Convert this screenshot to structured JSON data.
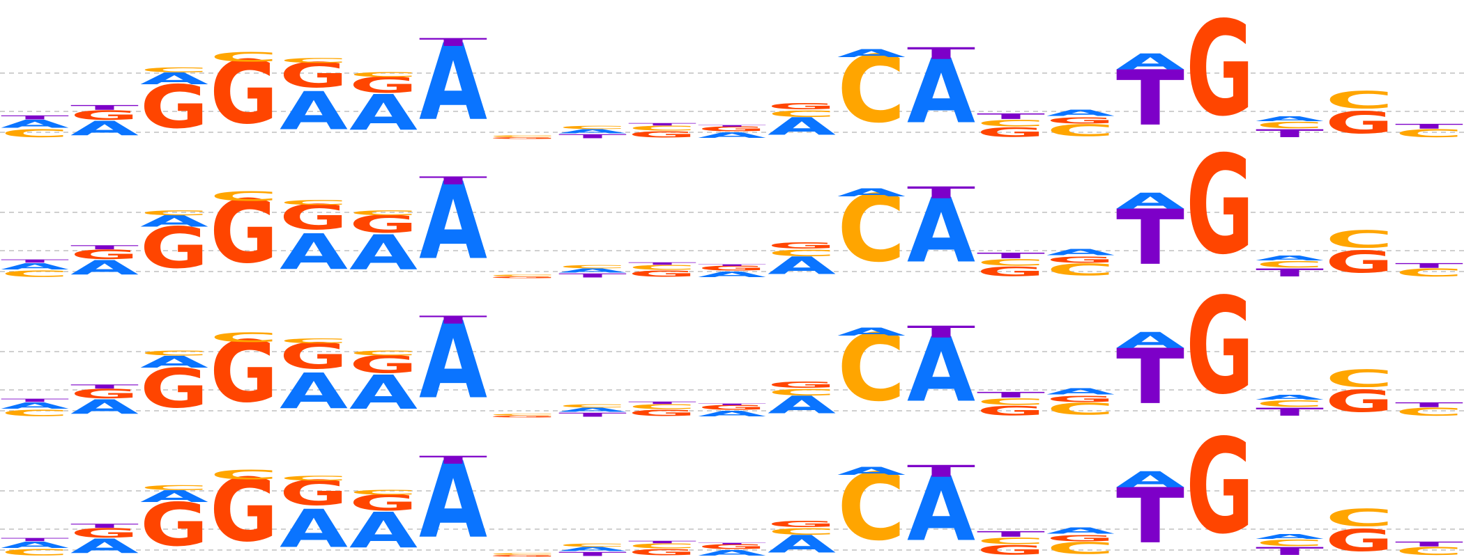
{
  "figure": {
    "type": "sequence-logo",
    "panel_count": 4,
    "colors": {
      "A": "#0a74ff",
      "C": "#ffa500",
      "G": "#ff4500",
      "T": "#7d00c8"
    },
    "grid": true
  },
  "logos": [
    {
      "columns": [
        [
          [
            "C",
            0.1
          ],
          [
            "A",
            0.1
          ],
          [
            "T",
            0.05
          ]
        ],
        [
          [
            "A",
            0.18
          ],
          [
            "G",
            0.12
          ],
          [
            "T",
            0.06
          ]
        ],
        [
          [
            "G",
            0.55
          ],
          [
            "A",
            0.15
          ],
          [
            "C",
            0.06
          ]
        ],
        [
          [
            "G",
            0.8
          ],
          [
            "C",
            0.12
          ]
        ],
        [
          [
            "A",
            0.48
          ],
          [
            "G",
            0.32
          ],
          [
            "C",
            0.06
          ]
        ],
        [
          [
            "A",
            0.45
          ],
          [
            "G",
            0.2
          ],
          [
            "C",
            0.06
          ]
        ],
        [
          [
            "A",
            0.97
          ],
          [
            "T",
            0.1
          ]
        ],
        [
          [
            "G",
            0.02
          ],
          [
            "C",
            0.02
          ]
        ],
        [
          [
            "T",
            0.05
          ],
          [
            "A",
            0.05
          ],
          [
            "C",
            0.04
          ]
        ],
        [
          [
            "G",
            0.08
          ],
          [
            "C",
            0.06
          ],
          [
            "T",
            0.03
          ]
        ],
        [
          [
            "A",
            0.07
          ],
          [
            "G",
            0.06
          ],
          [
            "T",
            0.02
          ]
        ],
        [
          [
            "A",
            0.22
          ],
          [
            "C",
            0.08
          ],
          [
            "G",
            0.08
          ]
        ],
        [
          [
            "C",
            0.85
          ],
          [
            "A",
            0.1
          ]
        ],
        [
          [
            "A",
            0.82
          ],
          [
            "T",
            0.15
          ]
        ],
        [
          [
            "G",
            0.12
          ],
          [
            "C",
            0.08
          ],
          [
            "T",
            0.07
          ]
        ],
        [
          [
            "C",
            0.15
          ],
          [
            "G",
            0.08
          ],
          [
            "A",
            0.08
          ]
        ],
        [
          [
            "T",
            0.7
          ],
          [
            "A",
            0.2
          ]
        ],
        [
          [
            "G",
            1.2
          ]
        ],
        [
          [
            "T",
            0.1
          ],
          [
            "C",
            0.08
          ],
          [
            "A",
            0.06
          ]
        ],
        [
          [
            "C",
            0.22
          ],
          [
            "G",
            0.28
          ]
        ],
        [
          [
            "C",
            0.1
          ],
          [
            "T",
            0.06
          ]
        ]
      ]
    },
    {
      "columns": [
        [
          [
            "C",
            0.08
          ],
          [
            "A",
            0.08
          ],
          [
            "T",
            0.04
          ]
        ],
        [
          [
            "A",
            0.18
          ],
          [
            "G",
            0.12
          ],
          [
            "T",
            0.05
          ]
        ],
        [
          [
            "G",
            0.52
          ],
          [
            "A",
            0.14
          ],
          [
            "C",
            0.06
          ]
        ],
        [
          [
            "G",
            0.8
          ],
          [
            "C",
            0.12
          ]
        ],
        [
          [
            "A",
            0.45
          ],
          [
            "G",
            0.32
          ],
          [
            "C",
            0.06
          ]
        ],
        [
          [
            "A",
            0.44
          ],
          [
            "G",
            0.22
          ],
          [
            "C",
            0.06
          ]
        ],
        [
          [
            "A",
            0.98
          ],
          [
            "T",
            0.1
          ]
        ],
        [
          [
            "G",
            0.02
          ],
          [
            "C",
            0.02
          ]
        ],
        [
          [
            "T",
            0.05
          ],
          [
            "A",
            0.05
          ],
          [
            "C",
            0.04
          ]
        ],
        [
          [
            "G",
            0.08
          ],
          [
            "C",
            0.06
          ],
          [
            "T",
            0.03
          ]
        ],
        [
          [
            "A",
            0.07
          ],
          [
            "G",
            0.06
          ],
          [
            "T",
            0.02
          ]
        ],
        [
          [
            "A",
            0.22
          ],
          [
            "C",
            0.08
          ],
          [
            "G",
            0.08
          ]
        ],
        [
          [
            "C",
            0.85
          ],
          [
            "A",
            0.1
          ]
        ],
        [
          [
            "A",
            0.82
          ],
          [
            "T",
            0.15
          ]
        ],
        [
          [
            "G",
            0.12
          ],
          [
            "C",
            0.08
          ],
          [
            "T",
            0.07
          ]
        ],
        [
          [
            "C",
            0.15
          ],
          [
            "G",
            0.08
          ],
          [
            "A",
            0.08
          ]
        ],
        [
          [
            "T",
            0.7
          ],
          [
            "A",
            0.2
          ]
        ],
        [
          [
            "G",
            1.25
          ]
        ],
        [
          [
            "T",
            0.1
          ],
          [
            "C",
            0.08
          ],
          [
            "A",
            0.06
          ]
        ],
        [
          [
            "C",
            0.22
          ],
          [
            "G",
            0.28
          ]
        ],
        [
          [
            "C",
            0.1
          ],
          [
            "T",
            0.06
          ]
        ]
      ]
    },
    {
      "columns": [
        [
          [
            "C",
            0.08
          ],
          [
            "A",
            0.08
          ],
          [
            "T",
            0.04
          ]
        ],
        [
          [
            "A",
            0.18
          ],
          [
            "G",
            0.12
          ],
          [
            "T",
            0.05
          ]
        ],
        [
          [
            "G",
            0.5
          ],
          [
            "A",
            0.15
          ],
          [
            "C",
            0.06
          ]
        ],
        [
          [
            "G",
            0.78
          ],
          [
            "C",
            0.12
          ]
        ],
        [
          [
            "A",
            0.45
          ],
          [
            "G",
            0.33
          ],
          [
            "C",
            0.06
          ]
        ],
        [
          [
            "A",
            0.43
          ],
          [
            "G",
            0.22
          ],
          [
            "C",
            0.06
          ]
        ],
        [
          [
            "A",
            0.98
          ],
          [
            "T",
            0.1
          ]
        ],
        [
          [
            "G",
            0.02
          ],
          [
            "C",
            0.02
          ]
        ],
        [
          [
            "T",
            0.05
          ],
          [
            "A",
            0.05
          ],
          [
            "C",
            0.04
          ]
        ],
        [
          [
            "G",
            0.08
          ],
          [
            "C",
            0.06
          ],
          [
            "T",
            0.03
          ]
        ],
        [
          [
            "A",
            0.07
          ],
          [
            "G",
            0.06
          ],
          [
            "T",
            0.02
          ]
        ],
        [
          [
            "A",
            0.22
          ],
          [
            "C",
            0.08
          ],
          [
            "G",
            0.08
          ]
        ],
        [
          [
            "C",
            0.85
          ],
          [
            "A",
            0.1
          ]
        ],
        [
          [
            "A",
            0.82
          ],
          [
            "T",
            0.15
          ]
        ],
        [
          [
            "G",
            0.12
          ],
          [
            "C",
            0.08
          ],
          [
            "T",
            0.07
          ]
        ],
        [
          [
            "C",
            0.15
          ],
          [
            "G",
            0.08
          ],
          [
            "A",
            0.08
          ]
        ],
        [
          [
            "T",
            0.7
          ],
          [
            "A",
            0.2
          ]
        ],
        [
          [
            "G",
            1.22
          ]
        ],
        [
          [
            "T",
            0.1
          ],
          [
            "C",
            0.08
          ],
          [
            "A",
            0.06
          ]
        ],
        [
          [
            "C",
            0.22
          ],
          [
            "G",
            0.28
          ]
        ],
        [
          [
            "C",
            0.1
          ],
          [
            "T",
            0.06
          ]
        ]
      ]
    },
    {
      "columns": [
        [
          [
            "C",
            0.08
          ],
          [
            "A",
            0.08
          ],
          [
            "T",
            0.04
          ]
        ],
        [
          [
            "A",
            0.18
          ],
          [
            "G",
            0.12
          ],
          [
            "T",
            0.05
          ]
        ],
        [
          [
            "G",
            0.55
          ],
          [
            "A",
            0.15
          ],
          [
            "C",
            0.06
          ]
        ],
        [
          [
            "G",
            0.8
          ],
          [
            "C",
            0.12
          ]
        ],
        [
          [
            "A",
            0.48
          ],
          [
            "G",
            0.32
          ],
          [
            "C",
            0.06
          ]
        ],
        [
          [
            "A",
            0.45
          ],
          [
            "G",
            0.2
          ],
          [
            "C",
            0.06
          ]
        ],
        [
          [
            "A",
            0.97
          ],
          [
            "T",
            0.1
          ]
        ],
        [
          [
            "G",
            0.02
          ],
          [
            "C",
            0.02
          ]
        ],
        [
          [
            "T",
            0.05
          ],
          [
            "A",
            0.05
          ],
          [
            "C",
            0.04
          ]
        ],
        [
          [
            "G",
            0.08
          ],
          [
            "C",
            0.06
          ],
          [
            "T",
            0.03
          ]
        ],
        [
          [
            "A",
            0.07
          ],
          [
            "G",
            0.06
          ],
          [
            "T",
            0.02
          ]
        ],
        [
          [
            "A",
            0.22
          ],
          [
            "C",
            0.08
          ],
          [
            "G",
            0.08
          ]
        ],
        [
          [
            "C",
            0.85
          ],
          [
            "A",
            0.1
          ]
        ],
        [
          [
            "A",
            0.82
          ],
          [
            "T",
            0.15
          ]
        ],
        [
          [
            "G",
            0.12
          ],
          [
            "C",
            0.08
          ],
          [
            "T",
            0.07
          ]
        ],
        [
          [
            "C",
            0.15
          ],
          [
            "G",
            0.08
          ],
          [
            "A",
            0.08
          ]
        ],
        [
          [
            "T",
            0.7
          ],
          [
            "A",
            0.2
          ]
        ],
        [
          [
            "G",
            1.2
          ]
        ],
        [
          [
            "T",
            0.1
          ],
          [
            "C",
            0.08
          ],
          [
            "A",
            0.06
          ]
        ],
        [
          [
            "C",
            0.22
          ],
          [
            "G",
            0.28
          ]
        ],
        [
          [
            "C",
            0.1
          ],
          [
            "T",
            0.06
          ]
        ]
      ]
    }
  ]
}
